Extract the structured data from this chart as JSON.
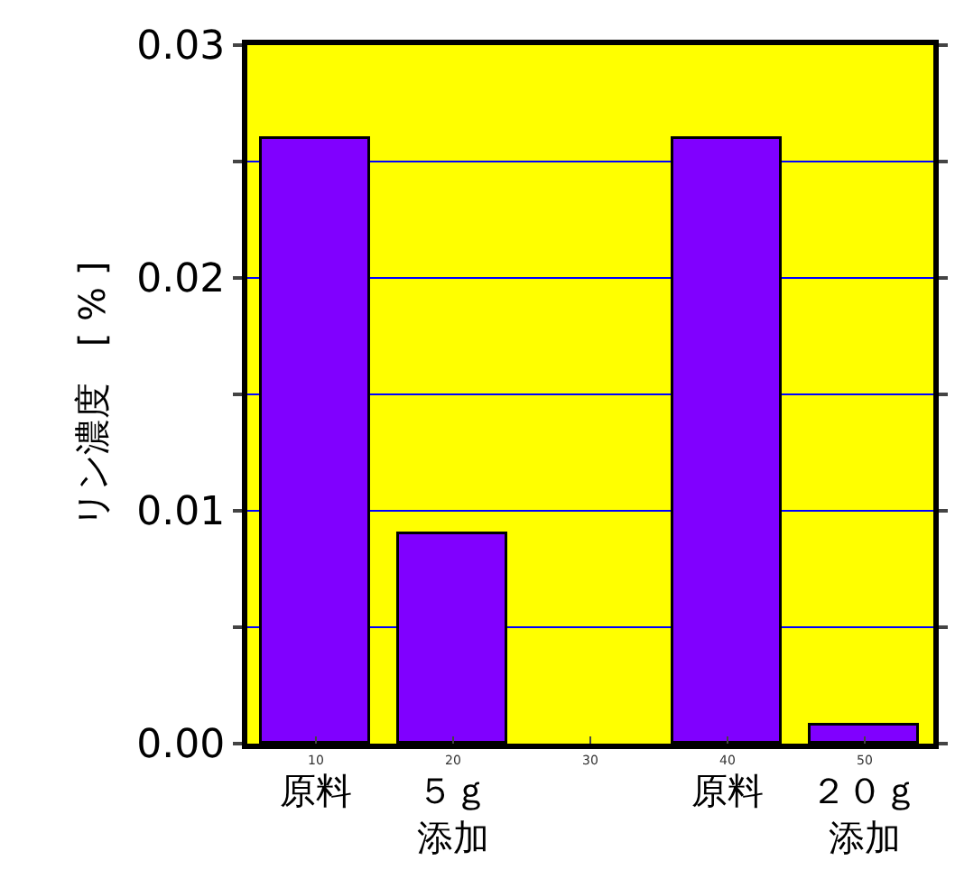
{
  "chart_data": {
    "type": "bar",
    "x": [
      10,
      20,
      30,
      40,
      50
    ],
    "values": [
      0.026,
      0.009,
      null,
      0.026,
      0.0008
    ],
    "color": "#8000ff",
    "xlim": [
      5,
      55
    ],
    "xticks": [
      10,
      20,
      30,
      40,
      50
    ],
    "ylim": [
      0,
      0.03
    ],
    "yticks": [
      {
        "value": 0,
        "label": "0.00"
      },
      {
        "value": 0.005,
        "label": null
      },
      {
        "value": 0.01,
        "label": "0.01"
      },
      {
        "value": 0.015,
        "label": null
      },
      {
        "value": 0.02,
        "label": "0.02"
      },
      {
        "value": 0.025,
        "label": null
      },
      {
        "value": 0.03,
        "label": "0.03"
      }
    ],
    "ylabel": "リン濃度　[ % ]",
    "grid": "y",
    "annotations": [
      {
        "text": "原料",
        "x": 10,
        "y": 0
      },
      {
        "text": "５ｇ",
        "x": 20,
        "y": 0
      },
      {
        "text": "添加",
        "x": 20,
        "y": 0
      },
      {
        "text": "原料",
        "x": 40,
        "y": 0
      },
      {
        "text": "２０ｇ",
        "x": 50,
        "y": 0
      },
      {
        "text": "添加",
        "x": 50,
        "y": 0
      }
    ]
  }
}
